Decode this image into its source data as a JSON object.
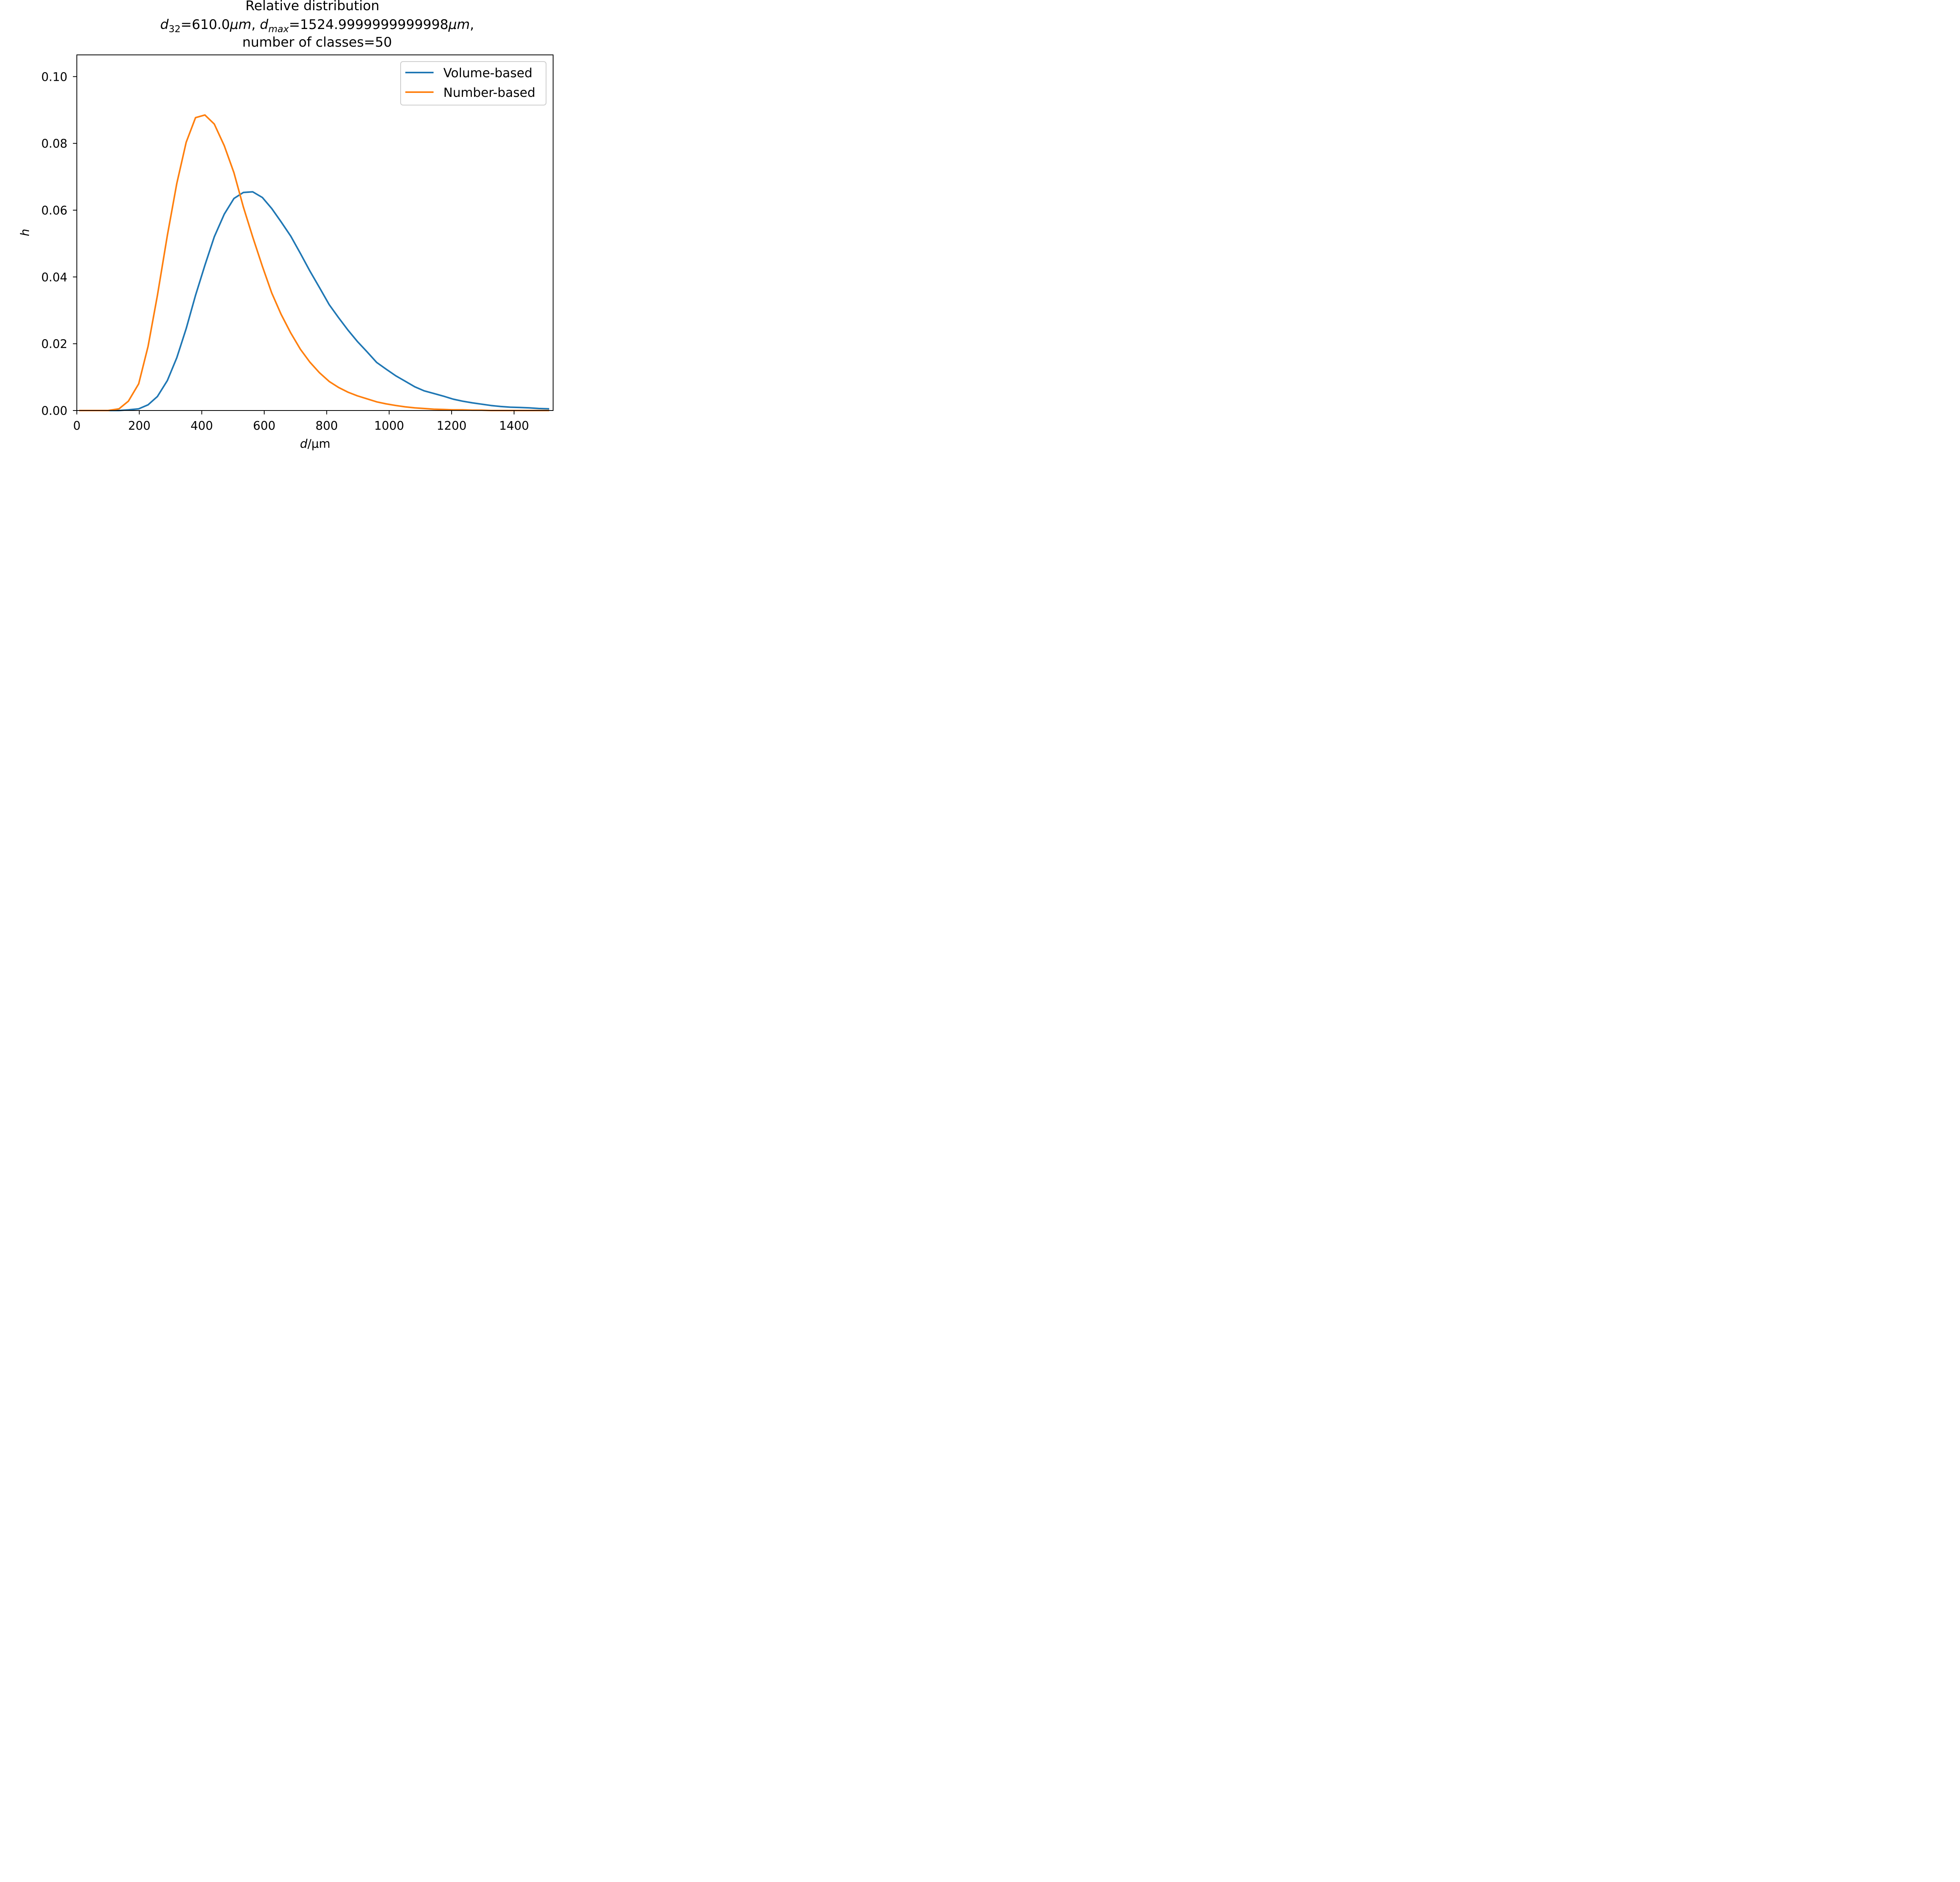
{
  "chart_data": {
    "type": "line",
    "title": {
      "line1": "Relative distribution",
      "line2": {
        "d32_symbol": "d",
        "d32_sub": "32",
        "d32_text": "=610.0",
        "unit_italic": "μm",
        "sep": ", ",
        "dmax_symbol": "d",
        "dmax_sub": "max",
        "dmax_text": "=1524.9999999999998",
        "unit2_italic": "μm",
        "end": ","
      },
      "line3": "number of classes=50"
    },
    "xlabel": {
      "symbol": "d",
      "rest": "/μm"
    },
    "ylabel": "h",
    "xlim": [
      0,
      1525
    ],
    "ylim": [
      0,
      0.1065
    ],
    "xticks": [
      0,
      200,
      400,
      600,
      800,
      1000,
      1200,
      1400
    ],
    "xtick_labels": [
      "0",
      "200",
      "400",
      "600",
      "800",
      "1000",
      "1200",
      "1400"
    ],
    "yticks": [
      0.0,
      0.02,
      0.04,
      0.06,
      0.08,
      0.1
    ],
    "ytick_labels": [
      "0.00",
      "0.02",
      "0.04",
      "0.06",
      "0.08",
      "0.10"
    ],
    "grid": false,
    "legend": "top-right",
    "series": [
      {
        "name": "Volume-based",
        "color": "#1f77b4",
        "x": [
          10,
          40,
          70,
          100,
          135,
          165,
          198,
          228,
          258,
          290,
          320,
          350,
          380,
          410,
          440,
          472,
          503,
          533,
          563,
          594,
          624,
          654,
          685,
          716,
          746,
          777,
          808,
          838,
          868,
          898,
          929,
          960,
          990,
          1021,
          1051,
          1082,
          1112,
          1143,
          1174,
          1205,
          1235,
          1266,
          1296,
          1326,
          1357,
          1388,
          1418,
          1449,
          1479,
          1510
        ],
        "y": [
          0.0,
          0.0,
          0.0,
          0.0,
          0.0,
          0.0002,
          0.0005,
          0.0017,
          0.0042,
          0.009,
          0.0158,
          0.0245,
          0.0345,
          0.0435,
          0.052,
          0.0588,
          0.0635,
          0.0653,
          0.0655,
          0.0638,
          0.0605,
          0.0565,
          0.0522,
          0.047,
          0.0418,
          0.0368,
          0.0317,
          0.0278,
          0.0241,
          0.0207,
          0.0176,
          0.0144,
          0.0124,
          0.0104,
          0.0088,
          0.0071,
          0.0059,
          0.0051,
          0.0043,
          0.0034,
          0.0028,
          0.0023,
          0.0019,
          0.0015,
          0.0012,
          0.001,
          0.0009,
          0.0008,
          0.0006,
          0.0005
        ]
      },
      {
        "name": "Number-based",
        "color": "#ff7f0e",
        "x": [
          10,
          40,
          70,
          100,
          135,
          165,
          198,
          228,
          258,
          290,
          320,
          350,
          380,
          410,
          440,
          472,
          503,
          533,
          563,
          594,
          624,
          654,
          685,
          716,
          746,
          777,
          808,
          838,
          868,
          898,
          929,
          960,
          990,
          1021,
          1051,
          1082,
          1112,
          1143,
          1174,
          1205,
          1235,
          1266,
          1296,
          1326,
          1357,
          1388,
          1418,
          1449,
          1479,
          1510
        ],
        "y": [
          0.0,
          0.0,
          0.0,
          0.0,
          0.0005,
          0.0028,
          0.008,
          0.0192,
          0.0345,
          0.0525,
          0.068,
          0.0803,
          0.0877,
          0.0885,
          0.0858,
          0.0793,
          0.0712,
          0.061,
          0.052,
          0.0432,
          0.0352,
          0.0288,
          0.0232,
          0.0183,
          0.0145,
          0.0113,
          0.0087,
          0.0069,
          0.0055,
          0.0044,
          0.0035,
          0.0026,
          0.002,
          0.0015,
          0.0011,
          0.0008,
          0.0006,
          0.0004,
          0.0003,
          0.0002,
          0.0002,
          0.0001,
          0.0001,
          0.0,
          0.0,
          0.0,
          0.0,
          0.0,
          0.0,
          0.0
        ]
      }
    ]
  }
}
